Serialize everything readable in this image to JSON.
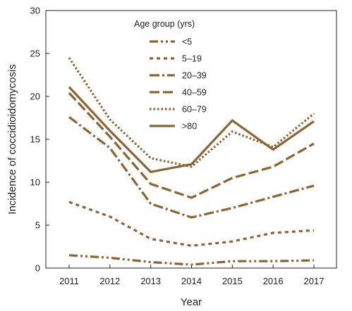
{
  "chart_data": {
    "type": "line",
    "x": [
      "2011",
      "2012",
      "2013",
      "2014",
      "2015",
      "2016",
      "2017"
    ],
    "xlabel": "Year",
    "ylabel": "Incidence of coccidioidomycosis",
    "ylim": [
      0,
      30
    ],
    "yticks": [
      "0",
      "5",
      "10",
      "15",
      "20",
      "25",
      "30"
    ],
    "grid": false,
    "legend": {
      "title": "Age group (yrs)",
      "placement": "top-center"
    },
    "series": [
      {
        "name": "<5",
        "values": [
          1.5,
          1.2,
          0.7,
          0.4,
          0.8,
          0.8,
          0.9
        ],
        "dash": "12,4,3,4,3,4"
      },
      {
        "name": "5–19",
        "values": [
          7.7,
          6.0,
          3.4,
          2.6,
          3.1,
          4.1,
          4.4
        ],
        "dash": "5,5"
      },
      {
        "name": "20–39",
        "values": [
          17.6,
          14.0,
          7.5,
          5.9,
          7.0,
          8.3,
          9.6
        ],
        "dash": "14,4,3,4"
      },
      {
        "name": "40–59",
        "values": [
          20.4,
          15.3,
          9.8,
          8.2,
          10.5,
          11.8,
          14.5
        ],
        "dash": "14,5"
      },
      {
        "name": "60–79",
        "values": [
          24.5,
          17.3,
          12.8,
          11.8,
          15.9,
          14.1,
          18.0
        ],
        "dash": "2.5,3"
      },
      {
        "name": ">80",
        "values": [
          21.1,
          16.0,
          11.2,
          12.1,
          17.2,
          13.8,
          17.1
        ],
        "dash": ""
      }
    ],
    "colors": {
      "line": "#8b6433",
      "axis": "#222222"
    }
  }
}
